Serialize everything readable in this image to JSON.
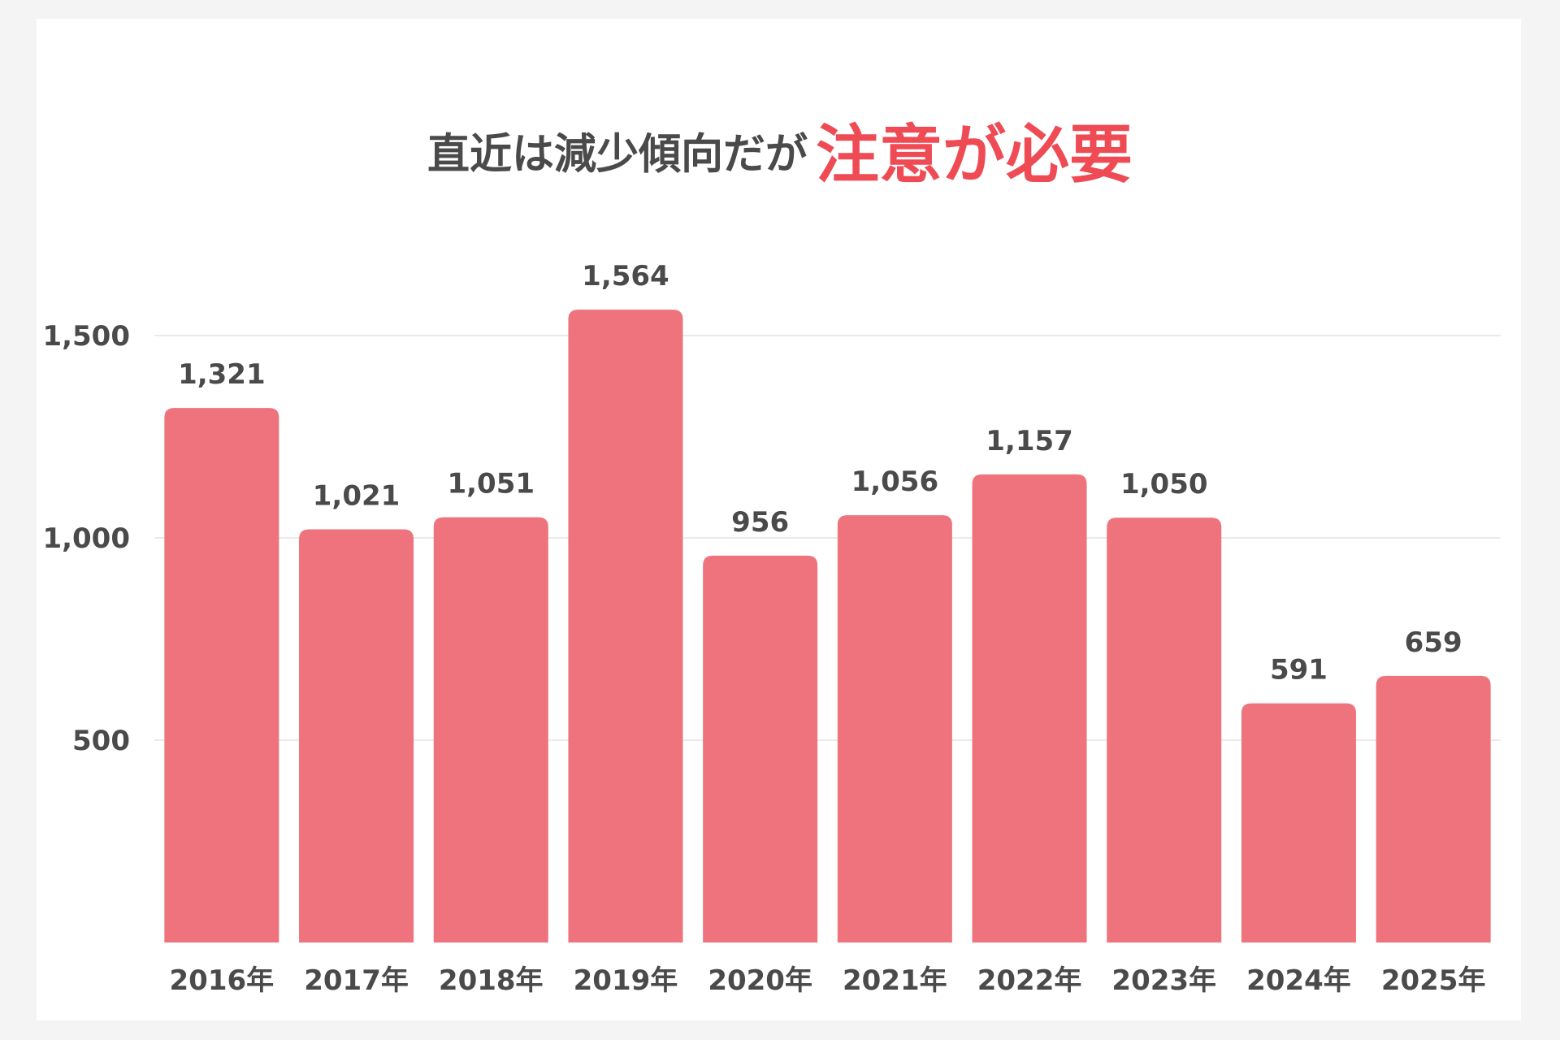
{
  "title": {
    "normal": "直近は減少傾向だが",
    "accent": "注意が必要"
  },
  "colors": {
    "bar": "#ee737c",
    "accent": "#ef4b55",
    "text": "#4a4a4a",
    "grid": "#e4e4e4"
  },
  "chart_data": {
    "type": "bar",
    "title": "直近は減少傾向だが注意が必要",
    "categories": [
      "2016年",
      "2017年",
      "2018年",
      "2019年",
      "2020年",
      "2021年",
      "2022年",
      "2023年",
      "2024年",
      "2025年"
    ],
    "values": [
      1321,
      1021,
      1051,
      1564,
      956,
      1056,
      1157,
      1050,
      591,
      659
    ],
    "value_labels": [
      "1,321",
      "1,021",
      "1,051",
      "1,564",
      "956",
      "1,056",
      "1,157",
      "1,050",
      "591",
      "659"
    ],
    "yticks": [
      500,
      1000,
      1500
    ],
    "ytick_labels": [
      "500",
      "1,000",
      "1,500"
    ],
    "ylim": [
      0,
      1650
    ],
    "xlabel": "",
    "ylabel": "",
    "grid": true,
    "legend": "none"
  }
}
